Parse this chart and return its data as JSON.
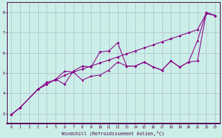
{
  "xlabel": "Windchill (Refroidissement éolien,°C)",
  "background_color": "#cceee8",
  "line_color": "#880088",
  "grid_color": "#aabbcc",
  "axis_color": "#440044",
  "xlim": [
    -0.5,
    23.5
  ],
  "ylim": [
    2.5,
    8.5
  ],
  "yticks": [
    3,
    4,
    5,
    6,
    7,
    8
  ],
  "xticks": [
    0,
    1,
    2,
    3,
    4,
    5,
    6,
    7,
    8,
    9,
    10,
    11,
    12,
    13,
    14,
    15,
    16,
    17,
    18,
    19,
    20,
    21,
    22,
    23
  ],
  "series1_x": [
    0,
    1,
    3,
    4,
    5,
    6,
    7,
    8,
    9,
    10,
    11,
    12,
    13,
    14,
    15,
    16,
    17,
    18,
    19,
    20,
    21,
    22,
    23
  ],
  "series1_y": [
    2.95,
    3.3,
    4.2,
    4.55,
    4.65,
    4.9,
    5.05,
    5.2,
    5.35,
    5.5,
    5.65,
    5.8,
    5.95,
    6.1,
    6.25,
    6.4,
    6.55,
    6.7,
    6.85,
    7.0,
    7.15,
    7.95,
    7.85
  ],
  "series2_x": [
    0,
    1,
    3,
    4,
    5,
    6,
    7,
    8,
    9,
    10,
    11,
    12,
    13,
    14,
    15,
    16,
    17,
    18,
    19,
    20,
    21,
    22,
    23
  ],
  "series2_y": [
    2.95,
    3.3,
    4.2,
    4.45,
    4.7,
    4.45,
    5.1,
    5.35,
    5.3,
    6.05,
    6.1,
    6.5,
    5.35,
    5.35,
    5.55,
    5.3,
    5.15,
    5.6,
    5.3,
    5.55,
    5.6,
    8.0,
    7.85
  ],
  "series3_x": [
    0,
    1,
    3,
    4,
    5,
    6,
    7,
    8,
    9,
    10,
    11,
    12,
    13,
    14,
    15,
    16,
    17,
    18,
    19,
    20,
    21,
    22,
    23
  ],
  "series3_y": [
    2.95,
    3.3,
    4.2,
    4.45,
    4.7,
    5.1,
    5.05,
    4.65,
    4.85,
    4.9,
    5.15,
    5.55,
    5.35,
    5.35,
    5.55,
    5.3,
    5.15,
    5.6,
    5.3,
    5.55,
    6.6,
    8.0,
    7.85
  ]
}
